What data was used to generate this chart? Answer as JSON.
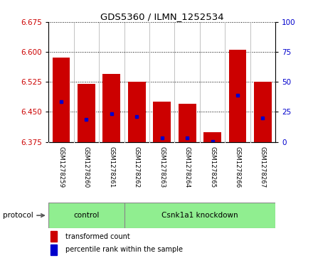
{
  "title": "GDS5360 / ILMN_1252534",
  "samples": [
    "GSM1278259",
    "GSM1278260",
    "GSM1278261",
    "GSM1278262",
    "GSM1278263",
    "GSM1278264",
    "GSM1278265",
    "GSM1278266",
    "GSM1278267"
  ],
  "bar_bottoms": [
    6.375,
    6.375,
    6.375,
    6.375,
    6.375,
    6.375,
    6.375,
    6.375,
    6.375
  ],
  "bar_tops": [
    6.585,
    6.52,
    6.545,
    6.525,
    6.475,
    6.47,
    6.4,
    6.605,
    6.525
  ],
  "blue_dot_values": [
    6.475,
    6.432,
    6.445,
    6.438,
    6.385,
    6.385,
    6.377,
    6.492,
    6.435
  ],
  "ylim": [
    6.375,
    6.675
  ],
  "yticks": [
    6.375,
    6.45,
    6.525,
    6.6,
    6.675
  ],
  "y2ticks": [
    0,
    25,
    50,
    75,
    100
  ],
  "bar_color": "#cc0000",
  "dot_color": "#0000cc",
  "sample_bg_color": "#d3d3d3",
  "protocol_color": "#90ee90",
  "legend_items": [
    {
      "label": "transformed count",
      "color": "#cc0000"
    },
    {
      "label": "percentile rank within the sample",
      "color": "#0000cc"
    }
  ],
  "protocol_label": "protocol",
  "control_count": 3,
  "knockdown_count": 6
}
